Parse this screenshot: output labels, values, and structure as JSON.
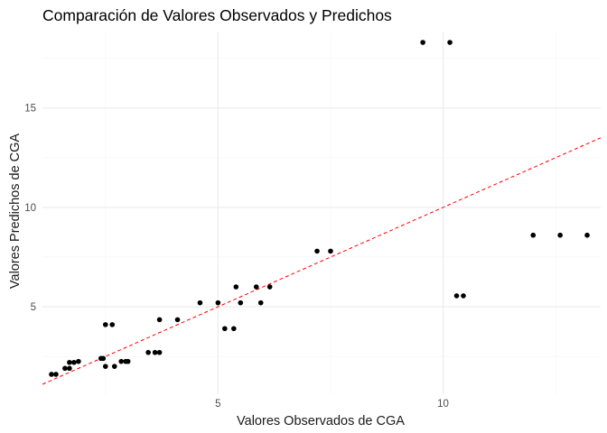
{
  "chart_data": {
    "type": "scatter",
    "title": "Comparación de Valores Observados y Predichos",
    "xlabel": "Valores Observados de CGA",
    "ylabel": "Valores Predichos de CGA",
    "xlim": [
      1.1,
      13.5
    ],
    "ylim": [
      0.6,
      18.8
    ],
    "xticks": [
      5,
      10
    ],
    "yticks": [
      5,
      10,
      15
    ],
    "grid": true,
    "reference_line": {
      "slope": 1,
      "intercept": 0,
      "color": "#ff0000",
      "style": "dashed"
    },
    "point_color": "#000000",
    "points": [
      {
        "x": 1.3,
        "y": 1.6
      },
      {
        "x": 1.4,
        "y": 1.6
      },
      {
        "x": 1.6,
        "y": 1.9
      },
      {
        "x": 1.7,
        "y": 1.9
      },
      {
        "x": 1.7,
        "y": 2.2
      },
      {
        "x": 1.8,
        "y": 2.2
      },
      {
        "x": 1.9,
        "y": 2.25
      },
      {
        "x": 2.4,
        "y": 2.4
      },
      {
        "x": 2.45,
        "y": 2.4
      },
      {
        "x": 2.5,
        "y": 4.1
      },
      {
        "x": 2.65,
        "y": 4.1
      },
      {
        "x": 2.5,
        "y": 2.0
      },
      {
        "x": 2.7,
        "y": 2.0
      },
      {
        "x": 2.85,
        "y": 2.25
      },
      {
        "x": 2.95,
        "y": 2.25
      },
      {
        "x": 3.0,
        "y": 2.25
      },
      {
        "x": 3.45,
        "y": 2.7
      },
      {
        "x": 3.6,
        "y": 2.7
      },
      {
        "x": 3.7,
        "y": 2.7
      },
      {
        "x": 3.7,
        "y": 4.35
      },
      {
        "x": 4.1,
        "y": 4.35
      },
      {
        "x": 4.6,
        "y": 5.2
      },
      {
        "x": 5.0,
        "y": 5.2
      },
      {
        "x": 5.15,
        "y": 3.9
      },
      {
        "x": 5.35,
        "y": 3.9
      },
      {
        "x": 5.4,
        "y": 6.0
      },
      {
        "x": 5.85,
        "y": 6.0
      },
      {
        "x": 6.15,
        "y": 6.0
      },
      {
        "x": 5.5,
        "y": 5.2
      },
      {
        "x": 5.95,
        "y": 5.2
      },
      {
        "x": 7.2,
        "y": 7.8
      },
      {
        "x": 7.5,
        "y": 7.8
      },
      {
        "x": 9.55,
        "y": 18.3
      },
      {
        "x": 10.15,
        "y": 18.3
      },
      {
        "x": 10.3,
        "y": 5.55
      },
      {
        "x": 10.45,
        "y": 5.55
      },
      {
        "x": 12.0,
        "y": 8.6
      },
      {
        "x": 12.6,
        "y": 8.6
      },
      {
        "x": 13.2,
        "y": 8.6
      }
    ]
  }
}
